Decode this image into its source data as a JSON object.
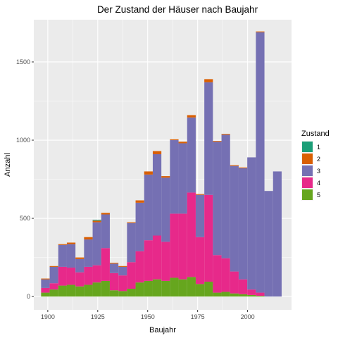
{
  "chart_data": {
    "type": "bar",
    "stacked": true,
    "title": "Der Zustand der Häuser nach Baujahr",
    "xlabel": "Baujahr",
    "ylabel": "Anzahl",
    "x_ticks": [
      1900,
      1925,
      1950,
      1975,
      2000
    ],
    "y_ticks": [
      0,
      500,
      1000,
      1500
    ],
    "xlim": [
      1893,
      2022
    ],
    "ylim": [
      -85,
      1770
    ],
    "bin_width": 4.3,
    "bin_centers": [
      1898.8,
      1903.1,
      1907.4,
      1911.7,
      1916.0,
      1920.3,
      1924.6,
      1928.9,
      1933.2,
      1937.5,
      1941.8,
      1946.1,
      1950.4,
      1954.7,
      1959.0,
      1963.3,
      1967.6,
      1971.9,
      1976.2,
      1980.5,
      1984.8,
      1989.1,
      1993.4,
      1997.7,
      2002.0,
      2006.3,
      2010.6,
      2014.9
    ],
    "legend": {
      "title": "Zustand",
      "position": "right"
    },
    "series": [
      {
        "name": "5",
        "color": "#66A61E",
        "values": [
          25,
          45,
          70,
          75,
          65,
          75,
          90,
          100,
          40,
          35,
          50,
          90,
          100,
          110,
          100,
          120,
          110,
          125,
          80,
          95,
          25,
          30,
          20,
          15,
          10,
          5,
          0,
          0
        ]
      },
      {
        "name": "4",
        "color": "#E7298A",
        "values": [
          30,
          40,
          120,
          110,
          90,
          115,
          110,
          210,
          110,
          100,
          170,
          200,
          260,
          280,
          250,
          410,
          420,
          540,
          300,
          555,
          240,
          215,
          140,
          95,
          35,
          20,
          0,
          0
        ]
      },
      {
        "name": "3",
        "color": "#7570B3",
        "values": [
          55,
          105,
          140,
          150,
          85,
          175,
          275,
          215,
          60,
          55,
          250,
          310,
          420,
          520,
          410,
          470,
          450,
          480,
          270,
          720,
          725,
          790,
          675,
          710,
          845,
          1665,
          675,
          800
        ]
      },
      {
        "name": "2",
        "color": "#D95F02",
        "values": [
          5,
          5,
          5,
          10,
          10,
          15,
          10,
          10,
          5,
          5,
          5,
          15,
          20,
          20,
          10,
          5,
          10,
          15,
          5,
          20,
          5,
          5,
          5,
          5,
          0,
          5,
          0,
          0
        ]
      },
      {
        "name": "1",
        "color": "#1B9E77",
        "values": [
          0,
          0,
          0,
          0,
          0,
          0,
          5,
          0,
          0,
          0,
          0,
          0,
          0,
          0,
          0,
          0,
          0,
          0,
          0,
          0,
          0,
          0,
          0,
          0,
          0,
          0,
          0,
          0
        ]
      }
    ]
  }
}
